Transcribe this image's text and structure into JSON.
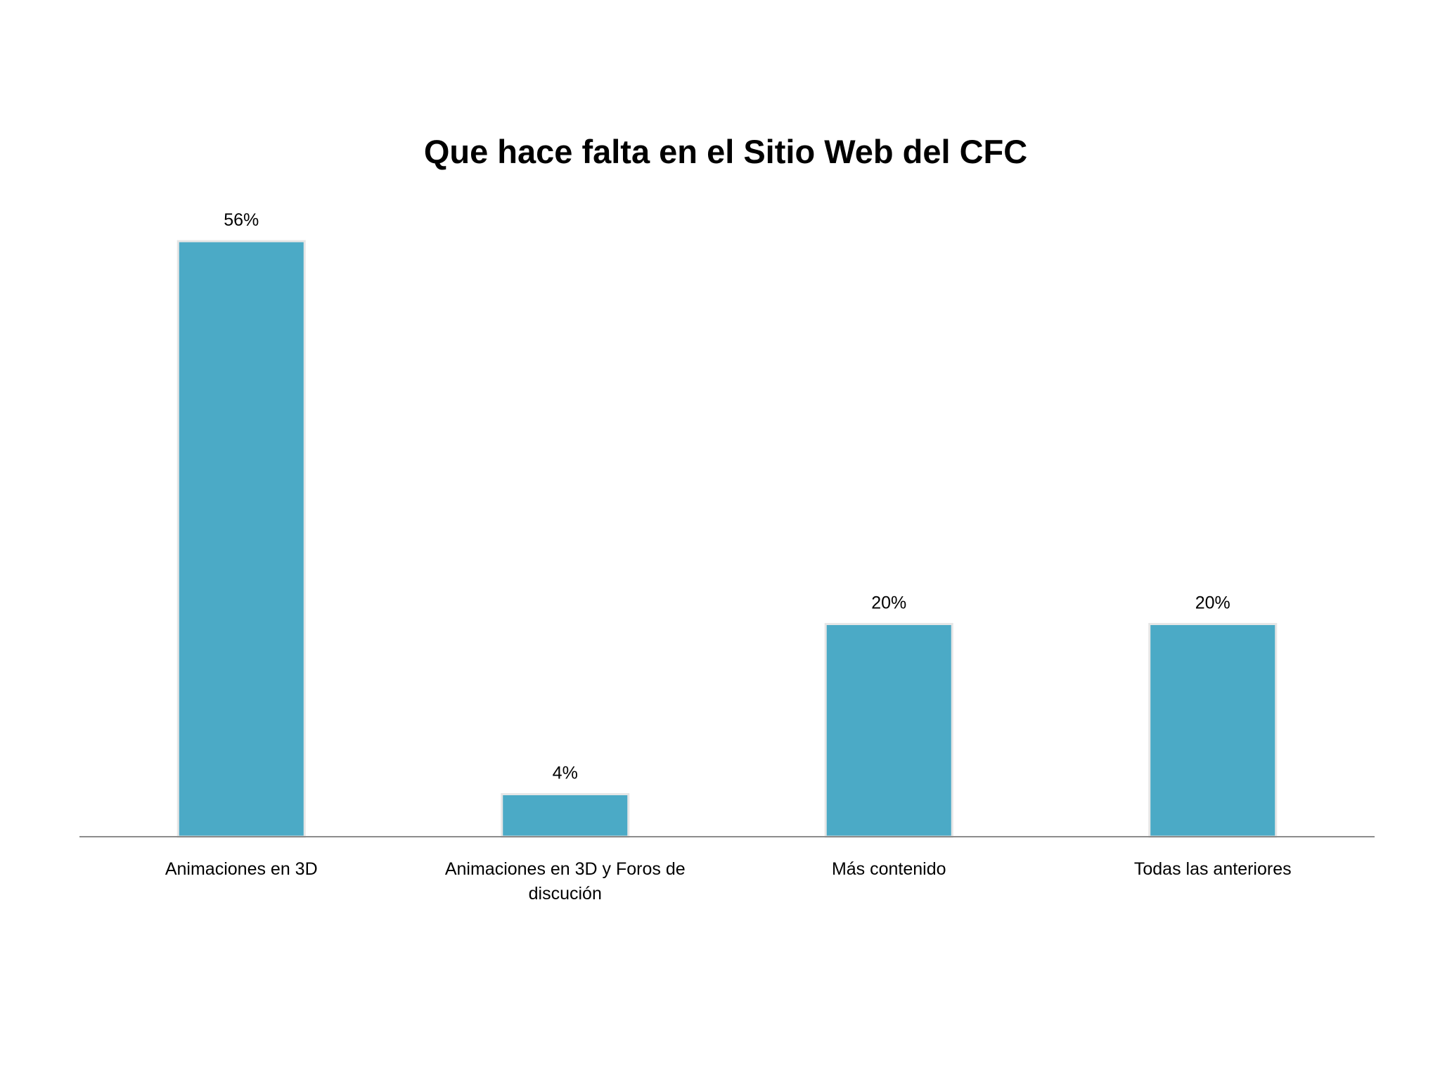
{
  "chart_data": {
    "type": "bar",
    "title": "Que hace falta en el Sitio Web del CFC",
    "xlabel": "",
    "ylabel": "",
    "categories": [
      [
        "Animaciones en 3D"
      ],
      [
        "Animaciones en 3D y Foros de",
        "discución"
      ],
      [
        "Más contenido"
      ],
      [
        "Todas las anteriores"
      ]
    ],
    "values": [
      56,
      4,
      20,
      20
    ],
    "data_labels": [
      "56%",
      "4%",
      "20%",
      "20%"
    ],
    "ylim": [
      0,
      56
    ],
    "grid": false,
    "legend": "none",
    "bar_color": "#4BAAC6",
    "bar_edge_color": "#e6e6e6",
    "axis_color": "#8c8c8c"
  }
}
